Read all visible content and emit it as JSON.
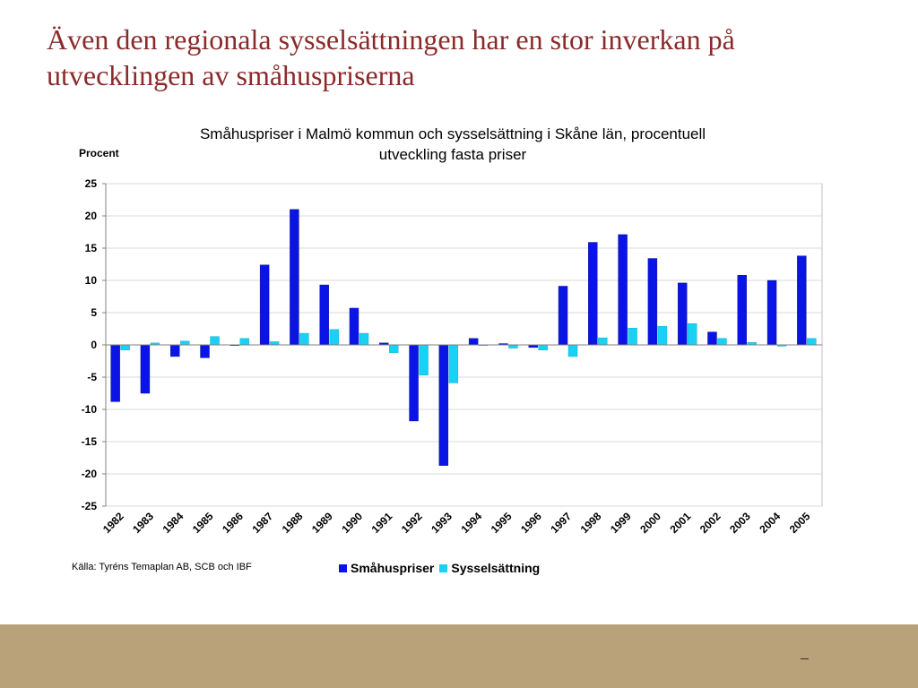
{
  "slide": {
    "title": "Även den regionala sysselsättningen har en stor inverkan på utvecklingen av småhuspriserna",
    "source": "Källa: Tyréns Temaplan AB, SCB och IBF",
    "footer_mark": "▬▬▬"
  },
  "colors": {
    "title": "#8b2a2a",
    "series1": "#0a14e6",
    "series2": "#19d1f5",
    "footer": "#b9a27a",
    "grid": "#d9d9d9"
  },
  "chart_data": {
    "type": "bar",
    "title": "Småhuspriser i Malmö kommun och sysselsättning i Skåne län, procentuell utveckling fasta priser",
    "ylabel": "Procent",
    "xlabel": "",
    "ylim": [
      -25,
      25
    ],
    "yticks": [
      "25",
      "20",
      "15",
      "10",
      "5",
      "0",
      "-5",
      "-10",
      "-15",
      "-20",
      "-25"
    ],
    "grid": true,
    "legend_position": "bottom",
    "categories": [
      "1982",
      "1983",
      "1984",
      "1985",
      "1986",
      "1987",
      "1988",
      "1989",
      "1990",
      "1991",
      "1992",
      "1993",
      "1994",
      "1995",
      "1996",
      "1997",
      "1998",
      "1999",
      "2000",
      "2001",
      "2002",
      "2003",
      "2004",
      "2005"
    ],
    "series": [
      {
        "name": "Småhuspriser",
        "values": [
          -8.8,
          -7.5,
          -1.8,
          -2.0,
          -0.1,
          12.4,
          21.0,
          9.3,
          5.7,
          0.3,
          -11.8,
          -18.7,
          1.0,
          0.2,
          -0.4,
          9.1,
          15.9,
          17.1,
          13.4,
          9.6,
          2.0,
          10.8,
          10.0,
          13.8
        ]
      },
      {
        "name": "Sysselsättning",
        "values": [
          -0.8,
          0.3,
          0.6,
          1.3,
          1.0,
          0.5,
          1.8,
          2.4,
          1.8,
          -1.2,
          -4.7,
          -5.9,
          -0.1,
          -0.5,
          -0.8,
          -1.8,
          1.1,
          2.6,
          2.9,
          3.3,
          1.0,
          0.4,
          -0.2,
          1.0
        ]
      }
    ]
  }
}
